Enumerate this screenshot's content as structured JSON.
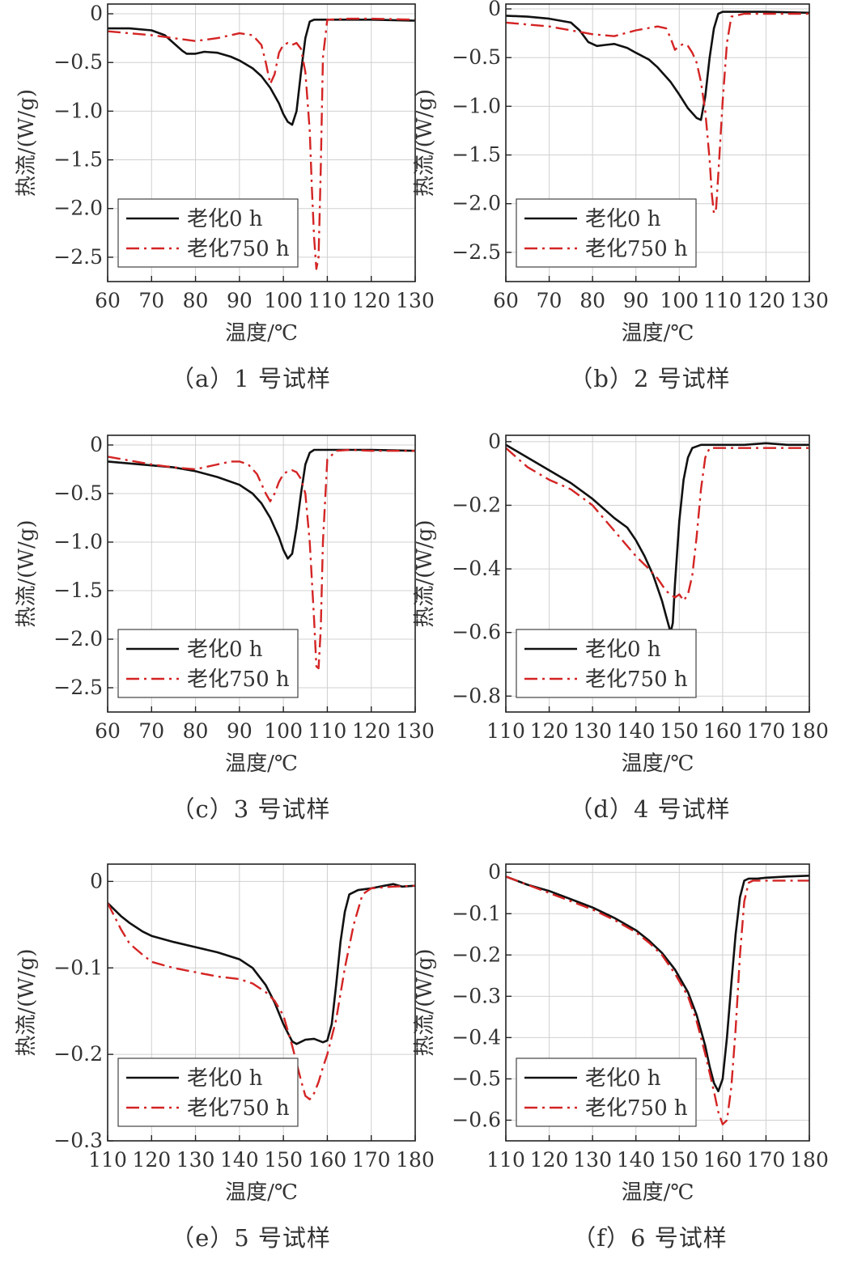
{
  "figure": {
    "xlabel": "温度/℃",
    "ylabel": "热流/(W/g)"
  },
  "legend": {
    "entries": [
      "老化0 h",
      "老化750 h"
    ]
  },
  "colors": {
    "series_0h": "#111111",
    "series_750h": "#d42424",
    "grid": "#d0d0d0"
  },
  "chart_data": [
    {
      "type": "line",
      "caption": "（a）1 号试样",
      "xlabel": "温度/℃",
      "ylabel": "热流/(W/g)",
      "xlim": [
        60,
        130
      ],
      "ylim": [
        -2.75,
        0.1
      ],
      "xticks": [
        60,
        70,
        80,
        90,
        100,
        110,
        120,
        130
      ],
      "yticks": [
        0,
        -0.5,
        -1.0,
        -1.5,
        -2.0,
        -2.5
      ],
      "ytick_labels": [
        "0",
        "−0.5",
        "−1.0",
        "−1.5",
        "−2.0",
        "−2.5"
      ],
      "grid": true,
      "legend_position": "bottom-left",
      "series": [
        {
          "name": "老化0 h",
          "style": "solid",
          "x": [
            60,
            65,
            70,
            73,
            75,
            77,
            78,
            80,
            82,
            85,
            88,
            90,
            93,
            95,
            97,
            99,
            100,
            101,
            102,
            103,
            104,
            105,
            106,
            107,
            108,
            110,
            115,
            120,
            130
          ],
          "y": [
            -0.15,
            -0.15,
            -0.17,
            -0.22,
            -0.3,
            -0.38,
            -0.41,
            -0.41,
            -0.39,
            -0.4,
            -0.44,
            -0.48,
            -0.56,
            -0.64,
            -0.76,
            -0.92,
            -1.03,
            -1.11,
            -1.14,
            -1.0,
            -0.6,
            -0.25,
            -0.08,
            -0.06,
            -0.06,
            -0.06,
            -0.06,
            -0.06,
            -0.07
          ]
        },
        {
          "name": "老化750 h",
          "style": "dash-dot",
          "x": [
            60,
            65,
            70,
            75,
            80,
            85,
            90,
            93,
            95,
            96,
            97,
            98,
            99,
            100,
            101,
            102,
            103,
            104,
            105,
            106,
            106.5,
            107,
            107.5,
            108,
            108.5,
            109,
            110,
            115,
            120,
            130
          ],
          "y": [
            -0.18,
            -0.2,
            -0.22,
            -0.25,
            -0.28,
            -0.25,
            -0.2,
            -0.22,
            -0.32,
            -0.5,
            -0.72,
            -0.62,
            -0.4,
            -0.32,
            -0.3,
            -0.32,
            -0.3,
            -0.36,
            -0.6,
            -1.2,
            -1.8,
            -2.3,
            -2.62,
            -2.5,
            -1.6,
            -0.45,
            -0.06,
            -0.05,
            -0.05,
            -0.06
          ]
        }
      ]
    },
    {
      "type": "line",
      "caption": "（b）2 号试样",
      "xlabel": "温度/℃",
      "ylabel": "热流/(W/g)",
      "xlim": [
        60,
        130
      ],
      "ylim": [
        -2.8,
        0.05
      ],
      "xticks": [
        60,
        70,
        80,
        90,
        100,
        110,
        120,
        130
      ],
      "yticks": [
        0,
        -0.5,
        -1.0,
        -1.5,
        -2.0,
        -2.5
      ],
      "ytick_labels": [
        "0",
        "−0.5",
        "−1.0",
        "−1.5",
        "−2.0",
        "−2.5"
      ],
      "grid": true,
      "legend_position": "bottom-left",
      "series": [
        {
          "name": "老化0 h",
          "style": "solid",
          "x": [
            60,
            65,
            70,
            75,
            77,
            79,
            81,
            83,
            85,
            88,
            90,
            93,
            95,
            98,
            100,
            102,
            104,
            105,
            106,
            107,
            108,
            109,
            110,
            112,
            115,
            120,
            130
          ],
          "y": [
            -0.07,
            -0.08,
            -0.1,
            -0.14,
            -0.22,
            -0.34,
            -0.38,
            -0.37,
            -0.36,
            -0.4,
            -0.45,
            -0.52,
            -0.6,
            -0.75,
            -0.88,
            -1.02,
            -1.12,
            -1.14,
            -0.9,
            -0.5,
            -0.2,
            -0.05,
            -0.03,
            -0.03,
            -0.03,
            -0.03,
            -0.04
          ]
        },
        {
          "name": "老化750 h",
          "style": "dash-dot",
          "x": [
            60,
            65,
            70,
            75,
            80,
            85,
            90,
            95,
            97,
            98,
            99,
            100,
            101,
            102,
            103,
            104,
            105,
            106,
            107,
            107.5,
            108,
            108.5,
            109,
            110,
            111,
            112,
            115,
            120,
            130
          ],
          "y": [
            -0.14,
            -0.16,
            -0.18,
            -0.22,
            -0.26,
            -0.28,
            -0.22,
            -0.18,
            -0.2,
            -0.3,
            -0.42,
            -0.38,
            -0.36,
            -0.38,
            -0.45,
            -0.55,
            -0.75,
            -1.05,
            -1.55,
            -1.9,
            -2.1,
            -2.05,
            -1.7,
            -0.95,
            -0.35,
            -0.08,
            -0.05,
            -0.05,
            -0.05
          ]
        }
      ]
    },
    {
      "type": "line",
      "caption": "（c）3 号试样",
      "xlabel": "温度/℃",
      "ylabel": "热流/(W/g)",
      "xlim": [
        60,
        130
      ],
      "ylim": [
        -2.75,
        0.1
      ],
      "xticks": [
        60,
        70,
        80,
        90,
        100,
        110,
        120,
        130
      ],
      "yticks": [
        0,
        -0.5,
        -1.0,
        -1.5,
        -2.0,
        -2.5
      ],
      "ytick_labels": [
        "0",
        "−0.5",
        "−1.0",
        "−1.5",
        "−2.0",
        "−2.5"
      ],
      "grid": true,
      "legend_position": "bottom-left",
      "series": [
        {
          "name": "老化0 h",
          "style": "solid",
          "x": [
            60,
            65,
            70,
            75,
            80,
            85,
            90,
            93,
            95,
            97,
            99,
            100,
            101,
            102,
            103,
            104,
            105,
            106,
            107,
            108,
            110,
            115,
            120,
            130
          ],
          "y": [
            -0.17,
            -0.19,
            -0.21,
            -0.23,
            -0.27,
            -0.33,
            -0.41,
            -0.5,
            -0.6,
            -0.75,
            -0.95,
            -1.08,
            -1.17,
            -1.12,
            -0.85,
            -0.5,
            -0.2,
            -0.08,
            -0.05,
            -0.05,
            -0.05,
            -0.05,
            -0.05,
            -0.06
          ]
        },
        {
          "name": "老化750 h",
          "style": "dash-dot",
          "x": [
            60,
            65,
            70,
            75,
            80,
            85,
            88,
            90,
            92,
            94,
            96,
            97,
            98,
            99,
            100,
            101,
            102,
            103,
            104,
            105,
            106,
            107,
            107.5,
            108,
            108.5,
            109,
            110,
            112,
            115,
            120,
            130
          ],
          "y": [
            -0.12,
            -0.16,
            -0.2,
            -0.23,
            -0.25,
            -0.2,
            -0.17,
            -0.17,
            -0.2,
            -0.3,
            -0.5,
            -0.58,
            -0.5,
            -0.38,
            -0.3,
            -0.27,
            -0.26,
            -0.28,
            -0.35,
            -0.5,
            -1.0,
            -1.8,
            -2.28,
            -2.3,
            -1.9,
            -1.0,
            -0.15,
            -0.06,
            -0.05,
            -0.06,
            -0.06
          ]
        }
      ]
    },
    {
      "type": "line",
      "caption": "（d）4 号试样",
      "xlabel": "温度/℃",
      "ylabel": "热流/(W/g)",
      "xlim": [
        110,
        180
      ],
      "ylim": [
        -0.85,
        0.02
      ],
      "xticks": [
        110,
        120,
        130,
        140,
        150,
        160,
        170,
        180
      ],
      "yticks": [
        0,
        -0.2,
        -0.4,
        -0.6,
        -0.8
      ],
      "ytick_labels": [
        "0",
        "−0.2",
        "−0.4",
        "−0.6",
        "−0.8"
      ],
      "grid": true,
      "legend_position": "bottom-left",
      "series": [
        {
          "name": "老化0 h",
          "style": "solid",
          "x": [
            110,
            115,
            120,
            125,
            130,
            135,
            138,
            140,
            142,
            144,
            145,
            146,
            147,
            148,
            148.5,
            149,
            150,
            151,
            152,
            153,
            155,
            158,
            160,
            165,
            170,
            175,
            180
          ],
          "y": [
            -0.01,
            -0.05,
            -0.09,
            -0.13,
            -0.18,
            -0.24,
            -0.27,
            -0.31,
            -0.36,
            -0.42,
            -0.46,
            -0.5,
            -0.55,
            -0.6,
            -0.57,
            -0.45,
            -0.25,
            -0.12,
            -0.05,
            -0.02,
            -0.01,
            -0.01,
            -0.01,
            -0.01,
            -0.005,
            -0.01,
            -0.01
          ]
        },
        {
          "name": "老化750 h",
          "style": "dash-dot",
          "x": [
            110,
            115,
            120,
            125,
            130,
            135,
            140,
            143,
            145,
            147,
            149,
            150,
            151,
            152,
            153,
            154,
            155,
            156,
            157,
            158,
            160,
            165,
            170,
            175,
            180
          ],
          "y": [
            -0.02,
            -0.08,
            -0.12,
            -0.15,
            -0.2,
            -0.28,
            -0.36,
            -0.4,
            -0.43,
            -0.47,
            -0.49,
            -0.48,
            -0.5,
            -0.48,
            -0.42,
            -0.3,
            -0.15,
            -0.05,
            -0.02,
            -0.02,
            -0.02,
            -0.02,
            -0.02,
            -0.02,
            -0.02
          ]
        }
      ]
    },
    {
      "type": "line",
      "caption": "（e）5 号试样",
      "xlabel": "温度/℃",
      "ylabel": "热流/(W/g)",
      "xlim": [
        110,
        180
      ],
      "ylim": [
        -0.3,
        0.02
      ],
      "xticks": [
        110,
        120,
        130,
        140,
        150,
        160,
        170,
        180
      ],
      "yticks": [
        0,
        -0.1,
        -0.2,
        -0.3
      ],
      "ytick_labels": [
        "0",
        "−0.1",
        "−0.2",
        "−0.3"
      ],
      "grid": true,
      "legend_position": "bottom-left",
      "series": [
        {
          "name": "老化0 h",
          "style": "solid",
          "x": [
            110,
            113,
            115,
            118,
            120,
            125,
            130,
            135,
            140,
            143,
            146,
            148,
            150,
            152,
            153,
            155,
            157,
            159,
            160,
            161,
            162,
            163,
            164,
            165,
            167,
            170,
            173,
            175,
            177,
            180
          ],
          "y": [
            -0.025,
            -0.04,
            -0.048,
            -0.058,
            -0.063,
            -0.07,
            -0.076,
            -0.082,
            -0.09,
            -0.1,
            -0.12,
            -0.14,
            -0.165,
            -0.185,
            -0.188,
            -0.183,
            -0.182,
            -0.186,
            -0.184,
            -0.165,
            -0.12,
            -0.07,
            -0.035,
            -0.015,
            -0.01,
            -0.008,
            -0.005,
            -0.003,
            -0.006,
            -0.005
          ]
        },
        {
          "name": "老化750 h",
          "style": "dash-dot",
          "x": [
            110,
            113,
            115,
            118,
            120,
            125,
            130,
            135,
            140,
            143,
            146,
            148,
            150,
            152,
            154,
            155,
            156,
            157,
            158,
            159,
            160,
            162,
            164,
            166,
            168,
            170,
            175,
            180
          ],
          "y": [
            -0.025,
            -0.055,
            -0.072,
            -0.085,
            -0.093,
            -0.1,
            -0.105,
            -0.11,
            -0.113,
            -0.118,
            -0.128,
            -0.138,
            -0.155,
            -0.19,
            -0.23,
            -0.248,
            -0.252,
            -0.245,
            -0.232,
            -0.215,
            -0.2,
            -0.16,
            -0.1,
            -0.05,
            -0.015,
            -0.008,
            -0.006,
            -0.005
          ]
        }
      ]
    },
    {
      "type": "line",
      "caption": "（f）6 号试样",
      "xlabel": "温度/℃",
      "ylabel": "热流/(W/g)",
      "xlim": [
        110,
        180
      ],
      "ylim": [
        -0.65,
        0.02
      ],
      "xticks": [
        110,
        120,
        130,
        140,
        150,
        160,
        170,
        180
      ],
      "yticks": [
        0,
        -0.1,
        -0.2,
        -0.3,
        -0.4,
        -0.5,
        -0.6
      ],
      "ytick_labels": [
        "0",
        "−0.1",
        "−0.2",
        "−0.3",
        "−0.4",
        "−0.5",
        "−0.6"
      ],
      "grid": true,
      "legend_position": "bottom-left",
      "series": [
        {
          "name": "老化0 h",
          "style": "solid",
          "x": [
            110,
            115,
            120,
            125,
            130,
            135,
            140,
            143,
            146,
            149,
            152,
            154,
            156,
            157,
            158,
            159,
            160,
            161,
            162,
            163,
            164,
            165,
            166,
            168,
            170,
            175,
            180
          ],
          "y": [
            -0.01,
            -0.03,
            -0.045,
            -0.065,
            -0.085,
            -0.11,
            -0.14,
            -0.165,
            -0.195,
            -0.235,
            -0.29,
            -0.345,
            -0.42,
            -0.47,
            -0.51,
            -0.53,
            -0.5,
            -0.4,
            -0.27,
            -0.15,
            -0.06,
            -0.02,
            -0.015,
            -0.015,
            -0.013,
            -0.01,
            -0.008
          ]
        },
        {
          "name": "老化750 h",
          "style": "dash-dot",
          "x": [
            110,
            115,
            120,
            125,
            130,
            135,
            140,
            143,
            146,
            149,
            152,
            154,
            156,
            158,
            159,
            160,
            161,
            162,
            163,
            164,
            165,
            166,
            167,
            170,
            175,
            180
          ],
          "y": [
            -0.01,
            -0.03,
            -0.05,
            -0.07,
            -0.09,
            -0.115,
            -0.145,
            -0.17,
            -0.2,
            -0.245,
            -0.3,
            -0.36,
            -0.44,
            -0.53,
            -0.58,
            -0.61,
            -0.6,
            -0.52,
            -0.38,
            -0.2,
            -0.07,
            -0.025,
            -0.02,
            -0.02,
            -0.02,
            -0.02
          ]
        }
      ]
    }
  ]
}
